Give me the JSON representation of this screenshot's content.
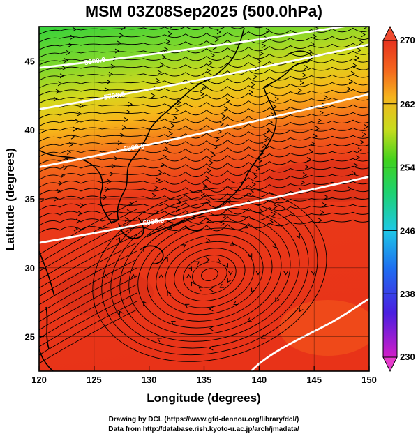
{
  "title": "MSM 03Z08Sep2025 (500.0hPa)",
  "x_axis": {
    "label": "Longitude (degrees)",
    "range": [
      120,
      150
    ],
    "ticks": [
      "120",
      "125",
      "130",
      "135",
      "140",
      "145",
      "150"
    ]
  },
  "y_axis": {
    "label": "Latitude  (degrees)",
    "range": [
      22.5,
      47.5
    ],
    "ticks": [
      "25",
      "30",
      "35",
      "40",
      "45"
    ]
  },
  "colorbar": {
    "range": [
      230,
      270
    ],
    "ticks": [
      "230",
      "238",
      "246",
      "254",
      "262",
      "270"
    ]
  },
  "contours": [
    {
      "label": "5600.0",
      "lat_at_120": 44.5,
      "lat_at_150": 47.8
    },
    {
      "label": "5700.0",
      "lat_at_120": 41.5,
      "lat_at_150": 46.2
    },
    {
      "label": "5800.0",
      "lat_at_120": 37.3,
      "lat_at_150": 42.6
    },
    {
      "label": "5900.0",
      "lat_at_120": 31.8,
      "lat_at_150": 36.6
    }
  ],
  "credits": {
    "line1": "Drawing by DCL (https://www.gfd-dennou.org/library/dcl/)",
    "line2": "Data from http://database.rish.kyoto-u.ac.jp/arch/jmadata/"
  },
  "colors": {
    "warm": "#e8391c",
    "mid": "#f4a01a",
    "cool": "#2ecc3a",
    "contour": "#ffffff"
  }
}
